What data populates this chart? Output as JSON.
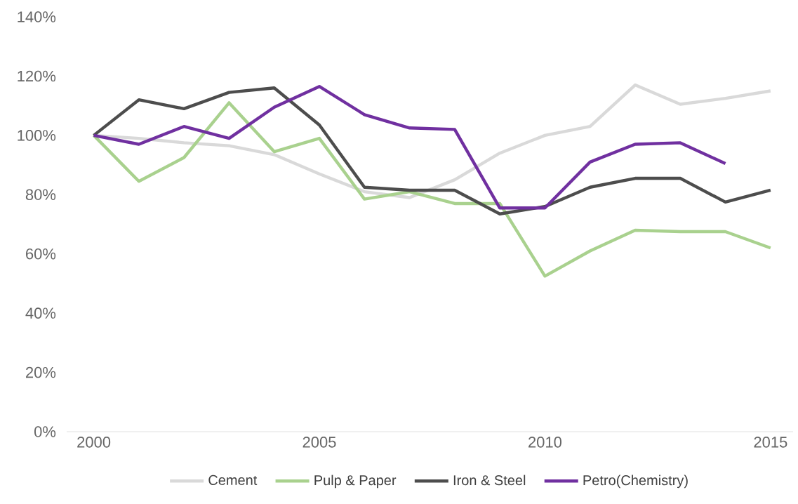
{
  "chart_data": {
    "type": "line",
    "x": [
      2000,
      2001,
      2002,
      2003,
      2004,
      2005,
      2006,
      2007,
      2008,
      2009,
      2010,
      2011,
      2012,
      2013,
      2014,
      2015
    ],
    "series": [
      {
        "name": "Cement",
        "color": "#d9d9d9",
        "values": [
          100,
          99,
          97.5,
          96.5,
          93.5,
          87,
          81,
          79,
          85,
          94,
          100,
          103,
          117,
          110.5,
          112.5,
          115
        ]
      },
      {
        "name": "Pulp & Paper",
        "color": "#a9d18e",
        "values": [
          100,
          84.5,
          92.5,
          111,
          94.5,
          99,
          78.5,
          81,
          77,
          77,
          52.5,
          61,
          68,
          67.5,
          67.5,
          62
        ]
      },
      {
        "name": "Iron & Steel",
        "color": "#4d4d4d",
        "values": [
          100,
          112,
          109,
          114.5,
          116,
          103.5,
          82.5,
          81.5,
          81.5,
          73.5,
          76,
          82.5,
          85.5,
          85.5,
          77.5,
          81.5
        ]
      },
      {
        "name": "Petro(Chemistry)",
        "color": "#7030a0",
        "values": [
          100,
          97,
          103,
          99,
          109.5,
          116.5,
          107,
          102.5,
          102,
          75.5,
          75.5,
          91,
          97,
          97.5,
          90.5,
          null
        ]
      }
    ],
    "xlim": [
      1999.4,
      2015.5
    ],
    "xticks": [
      2000,
      2005,
      2010,
      2015
    ],
    "ylim": [
      0,
      140
    ],
    "yticks": [
      {
        "value": 0,
        "label": "0%"
      },
      {
        "value": 20,
        "label": "20%"
      },
      {
        "value": 40,
        "label": "40%"
      },
      {
        "value": 60,
        "label": "60%"
      },
      {
        "value": 80,
        "label": "80%"
      },
      {
        "value": 100,
        "label": "100%"
      },
      {
        "value": 120,
        "label": "120%"
      },
      {
        "value": 140,
        "label": "140%"
      }
    ],
    "legend": "bottom"
  }
}
